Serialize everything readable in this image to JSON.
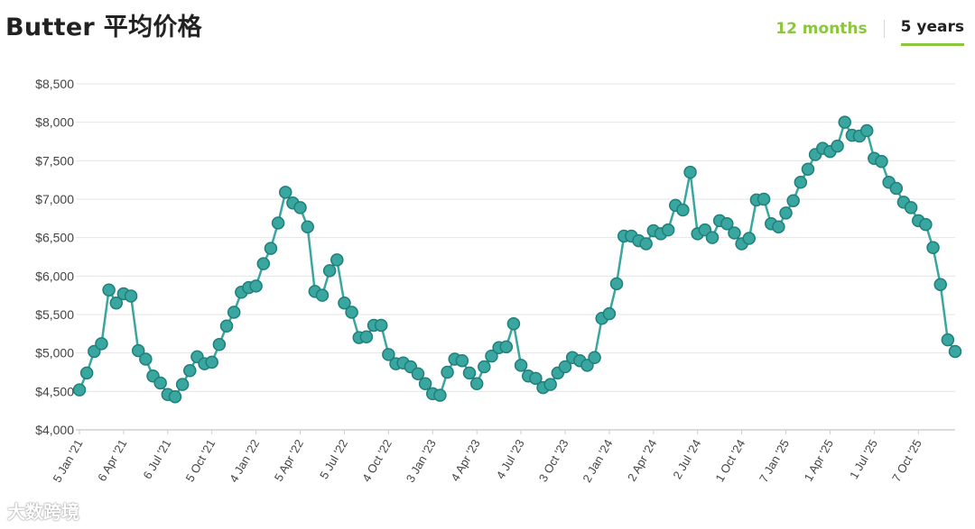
{
  "header": {
    "title": "Butter 平均价格",
    "tabs": [
      {
        "label": "12 months",
        "active": false
      },
      {
        "label": "5 years",
        "active": true
      }
    ]
  },
  "watermark": "大数跨境",
  "colors": {
    "line": "#3aa6a0",
    "marker_fill": "#3aa6a0",
    "marker_stroke": "#1f7f7a",
    "grid": "#e4e4e4",
    "active_tab": "#8cc63f"
  },
  "chart_data": {
    "type": "line",
    "title": "Butter 平均价格",
    "xlabel": "",
    "ylabel": "",
    "ylim": [
      4000,
      8500
    ],
    "y_ticks": [
      4000,
      4500,
      5000,
      5500,
      6000,
      6500,
      7000,
      7500,
      8000,
      8500
    ],
    "y_tick_labels": [
      "$4,000",
      "$4,500",
      "$5,000",
      "$5,500",
      "$6,000",
      "$6,500",
      "$7,000",
      "$7,500",
      "$8,000",
      "$8,500"
    ],
    "x_tick_labels": [
      "5 Jan '21",
      "6 Apr '21",
      "6 Jul '21",
      "5 Oct '21",
      "4 Jan '22",
      "5 Apr '22",
      "5 Jul '22",
      "4 Oct '22",
      "3 Jan '23",
      "4 Apr '23",
      "4 Jul '23",
      "3 Oct '23",
      "2 Jan '24",
      "2 Apr '24",
      "2 Jul '24",
      "1 Oct '24",
      "7 Jan '25",
      "1 Apr '25",
      "1 Jul '25",
      "7 Oct '25"
    ],
    "x_tick_index": [
      0,
      6,
      12,
      18,
      24,
      30,
      36,
      42,
      48,
      54,
      60,
      66,
      72,
      78,
      84,
      90,
      96,
      102,
      108,
      114
    ],
    "grid": true,
    "legend": "none",
    "series": [
      {
        "values": [
          4520,
          4740,
          5020,
          5120,
          5820,
          5650,
          5770,
          5740,
          5030,
          4920,
          4700,
          4610,
          4460,
          4430,
          4590,
          4770,
          4950,
          4860,
          4880,
          5110,
          5350,
          5530,
          5790,
          5850,
          5870,
          6160,
          6360,
          6690,
          7090,
          6950,
          6890,
          6640,
          5800,
          5750,
          6070,
          6210,
          5650,
          5530,
          5200,
          5210,
          5360,
          5360,
          4980,
          4860,
          4870,
          4820,
          4730,
          4600,
          4470,
          4450,
          4750,
          4920,
          4900,
          4740,
          4600,
          4820,
          4960,
          5070,
          5080,
          5380,
          4840,
          4700,
          4670,
          4550,
          4590,
          4740,
          4820,
          4940,
          4900,
          4840,
          4940,
          5450,
          5510,
          5900,
          6520,
          6520,
          6460,
          6420,
          6590,
          6550,
          6600,
          6920,
          6860,
          7350,
          6550,
          6600,
          6500,
          6720,
          6680,
          6560,
          6420,
          6490,
          6990,
          7000,
          6680,
          6640,
          6820,
          6980,
          7220,
          7390,
          7580,
          7660,
          7620,
          7690,
          8000,
          7830,
          7820,
          7890,
          7530,
          7490,
          7220,
          7140,
          6960,
          6890,
          6720,
          6670,
          6370,
          5890,
          5170,
          5020
        ]
      }
    ]
  }
}
